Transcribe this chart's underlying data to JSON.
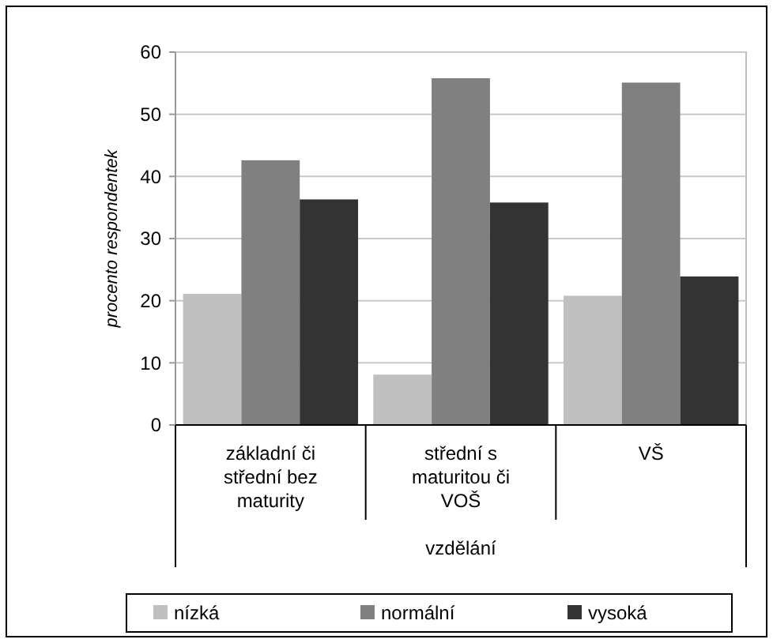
{
  "chart_data": {
    "type": "bar",
    "xlabel": "vzdělání",
    "ylabel": "procento respondentek",
    "categories": [
      "základní či střední bez maturity",
      "střední s maturitou či VOŠ",
      "VŠ"
    ],
    "series": [
      {
        "name": "nízká",
        "color": "#c0c0c0",
        "values": [
          21.1,
          8.1,
          20.8
        ]
      },
      {
        "name": "normální",
        "color": "#808080",
        "values": [
          42.6,
          55.8,
          55.1
        ]
      },
      {
        "name": "vysoká",
        "color": "#333333",
        "values": [
          36.3,
          35.8,
          23.9
        ]
      }
    ],
    "ylim": [
      0,
      60
    ],
    "yticks": [
      0,
      10,
      20,
      30,
      40,
      50,
      60
    ],
    "grid": "y",
    "legend": "bottom"
  }
}
